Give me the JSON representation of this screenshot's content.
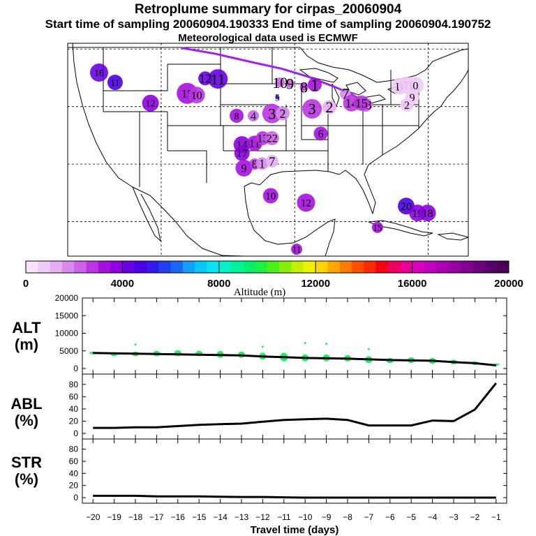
{
  "header": {
    "title": "Retroplume summary for cirpas_20060904",
    "sampling": "Start time of sampling 20060904.190333     End time of sampling 20060904.190752",
    "met": "Meteorological data used is ECMWF"
  },
  "map": {
    "labels": [
      {
        "t": "1",
        "lon": -87.0,
        "lat": 43.8,
        "alt": 3000,
        "r": 10,
        "fs": 24
      },
      {
        "t": "2",
        "lon": -84.8,
        "lat": 39.9,
        "alt": 1000,
        "r": 10,
        "fs": 22
      },
      {
        "t": "3",
        "lon": -87.4,
        "lat": 39.6,
        "alt": 2500,
        "r": 14,
        "fs": 22
      },
      {
        "t": "4",
        "lon": -92.0,
        "lat": 39.0,
        "alt": 1500,
        "r": 7,
        "fs": 20
      },
      {
        "t": "5",
        "lon": -92.6,
        "lat": 41.6,
        "alt": 4500,
        "r": 3,
        "fs": 14
      },
      {
        "t": "6",
        "lon": -86.1,
        "lat": 35.3,
        "alt": 3000,
        "r": 10,
        "fs": 16
      },
      {
        "t": "7",
        "lon": -82.4,
        "lat": 42.2,
        "alt": 1500,
        "r": 8,
        "fs": 22
      },
      {
        "t": "8",
        "lon": -88.6,
        "lat": 43.4,
        "alt": 2500,
        "r": 6,
        "fs": 22
      },
      {
        "t": "9",
        "lon": -90.7,
        "lat": 44.0,
        "alt": 2000,
        "r": 6,
        "fs": 22
      },
      {
        "t": "10",
        "lon": -92.2,
        "lat": 44.2,
        "alt": 2000,
        "r": 7,
        "fs": 22
      },
      {
        "t": "11",
        "lon": -101.5,
        "lat": 44.8,
        "alt": 4200,
        "r": 14,
        "fs": 22
      },
      {
        "t": "12",
        "lon": -103.4,
        "lat": 44.9,
        "alt": 4000,
        "r": 10,
        "fs": 18
      },
      {
        "t": "13",
        "lon": -79.4,
        "lat": 40.3,
        "alt": 2000,
        "r": 10,
        "fs": 18
      },
      {
        "t": "14",
        "lon": -81.5,
        "lat": 40.6,
        "alt": 2500,
        "r": 12,
        "fs": 18
      },
      {
        "t": "15",
        "lon": -80.0,
        "lat": 40.6,
        "alt": 2500,
        "r": 11,
        "fs": 18
      },
      {
        "t": "B",
        "lon": -74.3,
        "lat": 43.5,
        "alt": 800,
        "r": 12,
        "fs": 16
      },
      {
        "t": "7",
        "lon": -73.3,
        "lat": 43.7,
        "alt": 800,
        "r": 12,
        "fs": 16
      },
      {
        "t": "1",
        "lon": -72.6,
        "lat": 43.7,
        "alt": 800,
        "r": 12,
        "fs": 16
      },
      {
        "t": "0",
        "lon": -71.9,
        "lat": 43.7,
        "alt": 800,
        "r": 12,
        "fs": 16
      },
      {
        "t": "9",
        "lon": -72.4,
        "lat": 41.6,
        "alt": 700,
        "r": 10,
        "fs": 16
      },
      {
        "t": "2",
        "lon": -73.2,
        "lat": 40.3,
        "alt": 700,
        "r": 10,
        "fs": 16
      },
      {
        "t": "16",
        "lon": -119.3,
        "lat": 45.9,
        "alt": 4200,
        "r": 13,
        "fs": 14
      },
      {
        "t": "11",
        "lon": -116.9,
        "lat": 44.2,
        "alt": 4800,
        "r": 11,
        "fs": 14
      },
      {
        "t": "12",
        "lon": -111.6,
        "lat": 40.6,
        "alt": 3800,
        "r": 12,
        "fs": 14
      },
      {
        "t": "15",
        "lon": -106.1,
        "lat": 42.3,
        "alt": 3200,
        "r": 15,
        "fs": 16
      },
      {
        "t": "10",
        "lon": -104.7,
        "lat": 42.0,
        "alt": 2800,
        "r": 12,
        "fs": 16
      },
      {
        "t": "8",
        "lon": -98.7,
        "lat": 38.4,
        "alt": 3000,
        "r": 10,
        "fs": 14
      },
      {
        "t": "4",
        "lon": -96.2,
        "lat": 38.4,
        "alt": 2000,
        "r": 8,
        "fs": 16
      },
      {
        "t": "3",
        "lon": -93.4,
        "lat": 38.8,
        "alt": 2500,
        "r": 14,
        "fs": 22
      },
      {
        "t": "2",
        "lon": -91.8,
        "lat": 38.8,
        "alt": 1500,
        "r": 10,
        "fs": 18
      },
      {
        "t": "14",
        "lon": -97.9,
        "lat": 33.4,
        "alt": 3500,
        "r": 12,
        "fs": 16
      },
      {
        "t": "11",
        "lon": -96.0,
        "lat": 33.6,
        "alt": 3000,
        "r": 11,
        "fs": 16
      },
      {
        "t": "13",
        "lon": -94.8,
        "lat": 34.5,
        "alt": 2500,
        "r": 10,
        "fs": 16
      },
      {
        "t": "22",
        "lon": -93.4,
        "lat": 34.5,
        "alt": 2000,
        "r": 10,
        "fs": 16
      },
      {
        "t": "17",
        "lon": -97.9,
        "lat": 31.9,
        "alt": 3800,
        "r": 11,
        "fs": 16
      },
      {
        "t": "9",
        "lon": -97.6,
        "lat": 29.3,
        "alt": 3000,
        "r": 12,
        "fs": 16
      },
      {
        "t": "8",
        "lon": -96.0,
        "lat": 30.0,
        "alt": 2500,
        "r": 8,
        "fs": 16
      },
      {
        "t": "1",
        "lon": -94.9,
        "lat": 30.1,
        "alt": 1500,
        "r": 9,
        "fs": 18
      },
      {
        "t": "7",
        "lon": -93.4,
        "lat": 30.5,
        "alt": 1000,
        "r": 9,
        "fs": 18
      },
      {
        "t": "10",
        "lon": -93.6,
        "lat": 24.5,
        "alt": 3000,
        "r": 11,
        "fs": 15
      },
      {
        "t": "12",
        "lon": -88.3,
        "lat": 23.3,
        "alt": 3000,
        "r": 13,
        "fs": 15
      },
      {
        "t": "20",
        "lon": -73.3,
        "lat": 22.7,
        "alt": 4500,
        "r": 12,
        "fs": 16
      },
      {
        "t": "19",
        "lon": -71.6,
        "lat": 21.5,
        "alt": 3800,
        "r": 12,
        "fs": 16
      },
      {
        "t": "18",
        "lon": -70.1,
        "lat": 21.5,
        "alt": 3800,
        "r": 12,
        "fs": 16
      },
      {
        "t": "15",
        "lon": -77.6,
        "lat": 19.0,
        "alt": 3000,
        "r": 8,
        "fs": 13
      },
      {
        "t": "11",
        "lon": -89.7,
        "lat": 15.2,
        "alt": 3200,
        "r": 8,
        "fs": 13
      }
    ],
    "track": [
      [
        -107.0,
        50.2
      ],
      [
        -102.0,
        49.2
      ],
      [
        -96.0,
        47.6
      ],
      [
        -92.0,
        46.6
      ],
      [
        -88.0,
        45.2
      ],
      [
        -84.0,
        43.4
      ],
      [
        -81.6,
        42.2
      ],
      [
        -79.4,
        40.8
      ]
    ],
    "lat_lines": [
      50,
      40,
      30,
      20
    ],
    "lon_lines": [
      -110,
      -90,
      -70
    ]
  },
  "colorbar": {
    "colors": [
      "#f7e3fb",
      "#f0cbf7",
      "#e6aef3",
      "#d98aee",
      "#cc63e8",
      "#bb35e1",
      "#a60fdf",
      "#8d00e0",
      "#6a00e3",
      "#4c00e6",
      "#3518ea",
      "#2040f0",
      "#1a66f5",
      "#14a0f8",
      "#08c8fb",
      "#04e6f4",
      "#00f2c8",
      "#00f29a",
      "#00f06c",
      "#1cf040",
      "#4cf01c",
      "#86f00a",
      "#c4f000",
      "#eef000",
      "#fcd400",
      "#fca800",
      "#fc7c00",
      "#fc5000",
      "#fc2a00",
      "#f80014",
      "#f0005c",
      "#e80096",
      "#d800b8",
      "#c400c0",
      "#ac00b4",
      "#9600a4",
      "#800092",
      "#6c007e",
      "#5a006c",
      "#480058"
    ],
    "min": 0,
    "max": 20000,
    "ticks": [
      "0",
      "4000",
      "8000",
      "12000",
      "16000",
      "20000"
    ],
    "label": "Altitude (m)"
  },
  "panels": {
    "x_ticks": [
      "−20",
      "−19",
      "−18",
      "−17",
      "−16",
      "−15",
      "−14",
      "−13",
      "−12",
      "−11",
      "−10",
      "−9",
      "−8",
      "−7",
      "−6",
      "−5",
      "−4",
      "−3",
      "−2",
      "−1"
    ],
    "xlabel": "Travel time (days)",
    "alt": {
      "label1": "ALT",
      "label2": "(m)",
      "yticks": [
        "0",
        "5000",
        "10000",
        "15000",
        "20000"
      ],
      "ymax": 20000
    },
    "abl": {
      "label1": "ABL",
      "label2": "(%)",
      "yticks": [
        "0",
        "20",
        "40",
        "60",
        "80"
      ],
      "ymax": 90
    },
    "str": {
      "label1": "STR",
      "label2": "(%)",
      "yticks": [
        "0",
        "20",
        "40",
        "60",
        "80"
      ],
      "ymax": 90
    }
  },
  "chart_data": [
    {
      "type": "line",
      "title": "ALT (m)",
      "xlabel": "Travel time (days)",
      "ylabel": "ALT (m)",
      "ylim": [
        0,
        20000
      ],
      "x": [
        -20,
        -19,
        -18,
        -17,
        -16,
        -15,
        -14,
        -13,
        -12,
        -11,
        -10,
        -9,
        -8,
        -7,
        -6,
        -5,
        -4,
        -3,
        -2,
        -1
      ],
      "series": [
        {
          "name": "median altitude",
          "values": [
            4400,
            4300,
            4200,
            4100,
            4000,
            3900,
            3800,
            3700,
            3400,
            3200,
            3000,
            2900,
            2800,
            2600,
            2400,
            2300,
            2200,
            1800,
            1500,
            900
          ]
        }
      ],
      "scatter": {
        "x": [
          -20,
          -19,
          -18,
          -17,
          -16,
          -15,
          -14,
          -13,
          -12,
          -11,
          -10,
          -9,
          -8,
          -7,
          -6,
          -5,
          -4,
          -3,
          -2,
          -1
        ],
        "low": [
          4000,
          3500,
          3500,
          3500,
          3500,
          3500,
          3000,
          3000,
          2500,
          2000,
          2000,
          2000,
          2000,
          1500,
          1500,
          1500,
          1300,
          1200,
          1000,
          800
        ],
        "high": [
          4800,
          4600,
          4800,
          5000,
          5200,
          5000,
          5000,
          4800,
          4500,
          4500,
          4000,
          4000,
          3800,
          3500,
          3000,
          3200,
          3000,
          2500,
          2000,
          1400
        ],
        "outliers": [
          [
            -18,
            6800
          ],
          [
            -12,
            6200
          ],
          [
            -10,
            7200
          ],
          [
            -9,
            7000
          ],
          [
            -7,
            5500
          ]
        ]
      }
    },
    {
      "type": "line",
      "title": "ABL (%)",
      "xlabel": "Travel time (days)",
      "ylabel": "ABL (%)",
      "ylim": [
        0,
        90
      ],
      "x": [
        -20,
        -19,
        -18,
        -17,
        -16,
        -15,
        -14,
        -13,
        -12,
        -11,
        -10,
        -9,
        -8,
        -7,
        -6,
        -5,
        -4,
        -3,
        -2,
        -1
      ],
      "series": [
        {
          "name": "ABL fraction",
          "values": [
            9,
            9,
            10,
            10,
            12,
            14,
            15,
            16,
            19,
            22,
            23,
            24,
            22,
            13,
            13,
            13,
            21,
            20,
            39,
            82
          ]
        }
      ]
    },
    {
      "type": "line",
      "title": "STR (%)",
      "xlabel": "Travel time (days)",
      "ylabel": "STR (%)",
      "ylim": [
        0,
        90
      ],
      "x": [
        -20,
        -19,
        -18,
        -17,
        -16,
        -15,
        -14,
        -13,
        -12,
        -11,
        -10,
        -9,
        -8,
        -7,
        -6,
        -5,
        -4,
        -3,
        -2,
        -1
      ],
      "series": [
        {
          "name": "STR fraction",
          "values": [
            3,
            3,
            3,
            2,
            2,
            2,
            1.5,
            1,
            1,
            0.5,
            0,
            0,
            0,
            0,
            0,
            0,
            0,
            0,
            0,
            0
          ]
        }
      ]
    }
  ]
}
